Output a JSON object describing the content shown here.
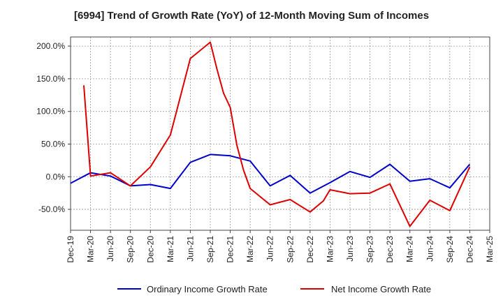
{
  "chart_data": {
    "type": "line",
    "title": "[6994]  Trend of Growth Rate (YoY) of 12-Month Moving Sum of Incomes",
    "xlabel": "",
    "ylabel": "",
    "x_tick_labels": [
      "Dec-19",
      "Mar-20",
      "Jun-20",
      "Sep-20",
      "Dec-20",
      "Mar-21",
      "Jun-21",
      "Sep-21",
      "Dec-21",
      "Mar-22",
      "Jun-22",
      "Sep-22",
      "Dec-22",
      "Mar-23",
      "Jun-23",
      "Sep-23",
      "Dec-23",
      "Mar-24",
      "Jun-24",
      "Sep-24",
      "Dec-24",
      "Mar-25"
    ],
    "y_tick_labels": [
      "-50.0%",
      "0.0%",
      "50.0%",
      "100.0%",
      "150.0%",
      "200.0%"
    ],
    "y_ticks": [
      -50,
      0,
      50,
      100,
      150,
      200
    ],
    "ylim": [
      -82,
      214
    ],
    "grid": true,
    "legend_position": "bottom",
    "series": [
      {
        "name": "Ordinary Income Growth Rate",
        "color": "#0000cc",
        "points": [
          [
            "Dec-19",
            -10
          ],
          [
            "Mar-20",
            6
          ],
          [
            "Jun-20",
            1
          ],
          [
            "Sep-20",
            -14
          ],
          [
            "Dec-20",
            -12
          ],
          [
            "Mar-21",
            -18
          ],
          [
            "Jun-21",
            22
          ],
          [
            "Sep-21",
            34
          ],
          [
            "Dec-21",
            32
          ],
          [
            "Mar-22",
            24
          ],
          [
            "Jun-22",
            -14
          ],
          [
            "Sep-22",
            2
          ],
          [
            "Dec-22",
            -25
          ],
          [
            "Mar-23",
            -9
          ],
          [
            "Jun-23",
            8
          ],
          [
            "Sep-23",
            -1
          ],
          [
            "Dec-23",
            19
          ],
          [
            "Mar-24",
            -7
          ],
          [
            "Jun-24",
            -3
          ],
          [
            "Sep-24",
            -17
          ],
          [
            "Dec-24",
            19
          ]
        ]
      },
      {
        "name": "Net Income Growth Rate",
        "color": "#dd0000",
        "points": [
          [
            "Feb-20",
            140
          ],
          [
            "Mar-20",
            1
          ],
          [
            "Jun-20",
            6
          ],
          [
            "Sep-20",
            -14
          ],
          [
            "Dec-20",
            15
          ],
          [
            "Mar-21",
            64
          ],
          [
            "Jun-21",
            181
          ],
          [
            "Sep-21",
            206
          ],
          [
            "Oct-21",
            165
          ],
          [
            "Nov-21",
            128
          ],
          [
            "Dec-21",
            106
          ],
          [
            "Jan-22",
            48
          ],
          [
            "Feb-22",
            10
          ],
          [
            "Mar-22",
            -18
          ],
          [
            "Jun-22",
            -43
          ],
          [
            "Sep-22",
            -35
          ],
          [
            "Dec-22",
            -54
          ],
          [
            "Feb-23",
            -37
          ],
          [
            "Mar-23",
            -20
          ],
          [
            "Jun-23",
            -26
          ],
          [
            "Sep-23",
            -25
          ],
          [
            "Dec-23",
            -11
          ],
          [
            "Mar-24",
            -76
          ],
          [
            "Jun-24",
            -36
          ],
          [
            "Sep-24",
            -52
          ],
          [
            "Dec-24",
            15
          ]
        ]
      }
    ]
  }
}
